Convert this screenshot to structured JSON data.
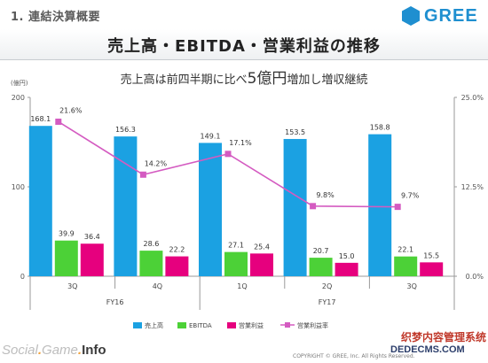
{
  "section_title": "1. 連結決算概要",
  "logo": {
    "text": "GREE",
    "color": "#1f8fd0"
  },
  "main_title": "売上高・EBITDA・営業利益の推移",
  "subtitle": {
    "pre": "売上高は前四半期に比べ",
    "emph": "5億円",
    "post": "増加し増収継続"
  },
  "footer": {
    "brand_a": "Social",
    "brand_b": "Game",
    "brand_c": "Info",
    "copyright": "COPYRIGHT © GREE, Inc. All Rights Reserved.",
    "watermark_cn": "织梦内容管理系统",
    "watermark_url": "DEDECMS.COM"
  },
  "chart_data": {
    "type": "bar",
    "unit_left": "(億円)",
    "categories": [
      "3Q",
      "4Q",
      "1Q",
      "2Q",
      "3Q"
    ],
    "groups": [
      {
        "label": "FY16",
        "span": [
          0,
          1
        ]
      },
      {
        "label": "FY17",
        "span": [
          2,
          4
        ]
      }
    ],
    "ylim_left": [
      0,
      200
    ],
    "yticks_left": [
      "0",
      "100",
      "200"
    ],
    "ylim_right": [
      0,
      25
    ],
    "yticks_right": [
      "0.0%",
      "12.5%",
      "25.0%"
    ],
    "series": [
      {
        "name": "売上高",
        "kind": "bar",
        "color": "#1ba1e2",
        "values": [
          168.1,
          156.3,
          149.1,
          153.5,
          158.8
        ],
        "labels": [
          "168.1",
          "156.3",
          "149.1",
          "153.5",
          "158.8"
        ]
      },
      {
        "name": "EBITDA",
        "kind": "bar",
        "color": "#4cd137",
        "values": [
          39.9,
          28.6,
          27.1,
          20.7,
          22.1
        ],
        "labels": [
          "39.9",
          "28.6",
          "27.1",
          "20.7",
          "22.1"
        ]
      },
      {
        "name": "営業利益",
        "kind": "bar",
        "color": "#e6007e",
        "values": [
          36.4,
          22.2,
          25.4,
          15.0,
          15.5
        ],
        "labels": [
          "36.4",
          "22.2",
          "25.4",
          "15.0",
          "15.5"
        ]
      },
      {
        "name": "営業利益率",
        "kind": "line",
        "axis": "right",
        "color": "#d45bc1",
        "values": [
          21.6,
          14.2,
          17.1,
          9.8,
          9.7
        ],
        "labels": [
          "21.6%",
          "14.2%",
          "17.1%",
          "9.8%",
          "9.7%"
        ]
      }
    ],
    "legend_position": "bottom",
    "grid": false
  }
}
